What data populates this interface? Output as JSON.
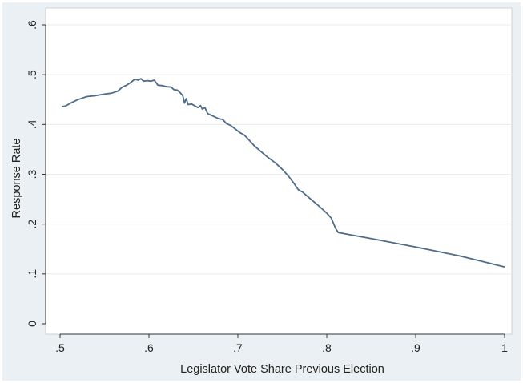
{
  "chart_data": {
    "type": "line",
    "title": "",
    "xlabel": "Legislator Vote Share Previous Election",
    "ylabel": "Response Rate",
    "xlim": [
      0.5,
      1.0
    ],
    "ylim": [
      0.0,
      0.6
    ],
    "x_ticks": [
      0.5,
      0.6,
      0.7,
      0.8,
      0.9,
      1.0
    ],
    "x_tick_labels": [
      ".5",
      ".6",
      ".7",
      ".8",
      ".9",
      "1"
    ],
    "y_ticks": [
      0.0,
      0.1,
      0.2,
      0.3,
      0.4,
      0.5,
      0.6
    ],
    "y_tick_labels": [
      "0",
      ".1",
      ".2",
      ".3",
      ".4",
      ".5",
      ".6"
    ],
    "grid": "horizontal",
    "series": [
      {
        "color": "#4f6b8a",
        "points": [
          [
            0.502,
            0.436
          ],
          [
            0.506,
            0.437
          ],
          [
            0.512,
            0.443
          ],
          [
            0.52,
            0.45
          ],
          [
            0.53,
            0.456
          ],
          [
            0.54,
            0.458
          ],
          [
            0.55,
            0.461
          ],
          [
            0.558,
            0.463
          ],
          [
            0.565,
            0.467
          ],
          [
            0.57,
            0.475
          ],
          [
            0.575,
            0.479
          ],
          [
            0.58,
            0.485
          ],
          [
            0.584,
            0.491
          ],
          [
            0.588,
            0.489
          ],
          [
            0.591,
            0.492
          ],
          [
            0.594,
            0.487
          ],
          [
            0.598,
            0.488
          ],
          [
            0.602,
            0.487
          ],
          [
            0.606,
            0.489
          ],
          [
            0.61,
            0.479
          ],
          [
            0.615,
            0.478
          ],
          [
            0.62,
            0.476
          ],
          [
            0.625,
            0.475
          ],
          [
            0.628,
            0.47
          ],
          [
            0.632,
            0.469
          ],
          [
            0.635,
            0.464
          ],
          [
            0.638,
            0.458
          ],
          [
            0.64,
            0.443
          ],
          [
            0.642,
            0.452
          ],
          [
            0.644,
            0.44
          ],
          [
            0.648,
            0.441
          ],
          [
            0.652,
            0.437
          ],
          [
            0.655,
            0.434
          ],
          [
            0.658,
            0.438
          ],
          [
            0.66,
            0.431
          ],
          [
            0.663,
            0.434
          ],
          [
            0.666,
            0.422
          ],
          [
            0.672,
            0.417
          ],
          [
            0.678,
            0.412
          ],
          [
            0.683,
            0.41
          ],
          [
            0.687,
            0.402
          ],
          [
            0.692,
            0.398
          ],
          [
            0.697,
            0.391
          ],
          [
            0.702,
            0.384
          ],
          [
            0.707,
            0.379
          ],
          [
            0.712,
            0.37
          ],
          [
            0.718,
            0.358
          ],
          [
            0.725,
            0.347
          ],
          [
            0.733,
            0.335
          ],
          [
            0.742,
            0.323
          ],
          [
            0.75,
            0.31
          ],
          [
            0.757,
            0.296
          ],
          [
            0.763,
            0.282
          ],
          [
            0.768,
            0.269
          ],
          [
            0.773,
            0.264
          ],
          [
            0.78,
            0.253
          ],
          [
            0.79,
            0.238
          ],
          [
            0.8,
            0.222
          ],
          [
            0.805,
            0.212
          ],
          [
            0.81,
            0.191
          ],
          [
            0.813,
            0.183
          ],
          [
            0.85,
            0.171
          ],
          [
            0.9,
            0.154
          ],
          [
            0.95,
            0.136
          ],
          [
            1.0,
            0.114
          ]
        ]
      }
    ]
  }
}
